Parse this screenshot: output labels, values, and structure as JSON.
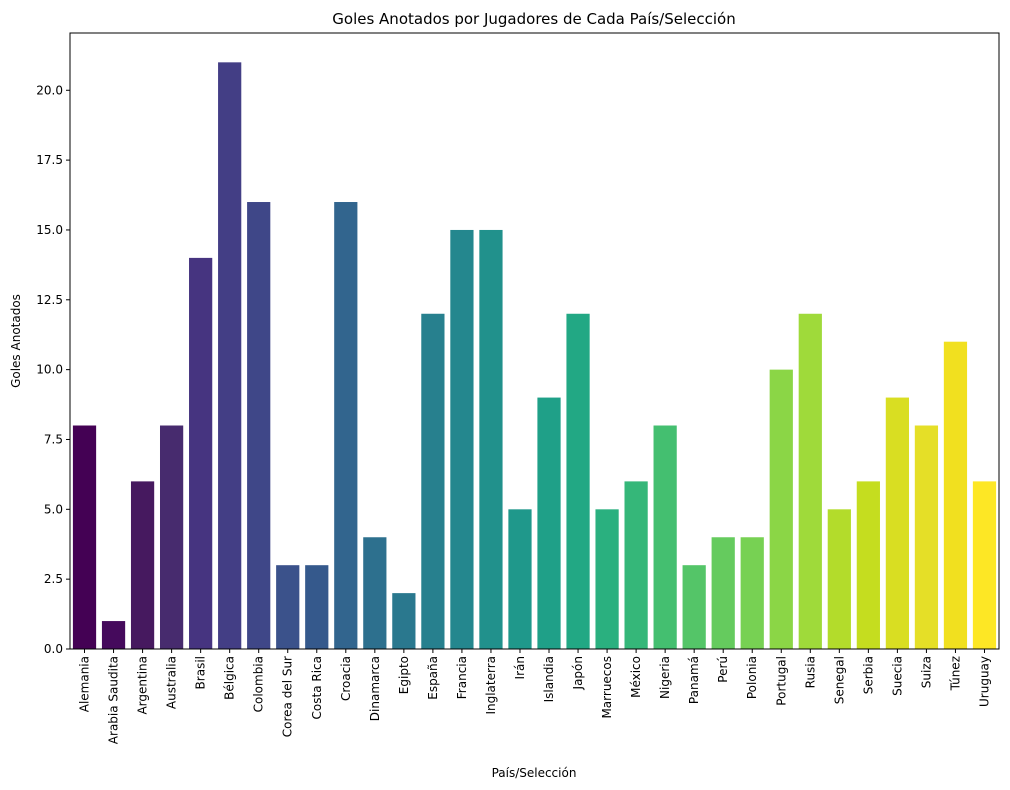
{
  "chart_data": {
    "type": "bar",
    "title": "Goles Anotados por Jugadores de Cada País/Selección",
    "xlabel": "País/Selección",
    "ylabel": "Goles Anotados",
    "ylim": [
      0,
      22.05
    ],
    "yticks": [
      "0.0",
      "2.5",
      "5.0",
      "7.5",
      "10.0",
      "12.5",
      "15.0",
      "17.5",
      "20.0"
    ],
    "grid": false,
    "colormap": "viridis",
    "categories": [
      "Alemania",
      "Arabia Saudita",
      "Argentina",
      "Australia",
      "Brasil",
      "Bélgica",
      "Colombia",
      "Corea del Sur",
      "Costa Rica",
      "Croacia",
      "Dinamarca",
      "Egipto",
      "España",
      "Francia",
      "Inglaterra",
      "Irán",
      "Islandia",
      "Japón",
      "Marruecos",
      "México",
      "Nigeria",
      "Panamá",
      "Perú",
      "Polonia",
      "Portugal",
      "Rusia",
      "Senegal",
      "Serbia",
      "Suecia",
      "Suiza",
      "Túnez",
      "Uruguay"
    ],
    "values": [
      8,
      1,
      6,
      8,
      14,
      21,
      16,
      3,
      3,
      16,
      4,
      2,
      12,
      15,
      15,
      5,
      9,
      12,
      5,
      6,
      8,
      3,
      4,
      4,
      10,
      12,
      5,
      6,
      9,
      8,
      11,
      6
    ],
    "colors": [
      "#440154",
      "#450a5c",
      "#46195f",
      "#472b6e",
      "#463480",
      "#433e85",
      "#3f4788",
      "#3b528b",
      "#35598c",
      "#32658e",
      "#2d708e",
      "#2a788e",
      "#27808e",
      "#24878e",
      "#21918c",
      "#1f988b",
      "#1fa088",
      "#22a884",
      "#2ab07f",
      "#35b779",
      "#44bf70",
      "#54c568",
      "#65cb5e",
      "#77d153",
      "#8bd646",
      "#9fda3a",
      "#b3dc2b",
      "#c5dd1f",
      "#d9de22",
      "#e5df27",
      "#f1e01f",
      "#fde725"
    ]
  }
}
